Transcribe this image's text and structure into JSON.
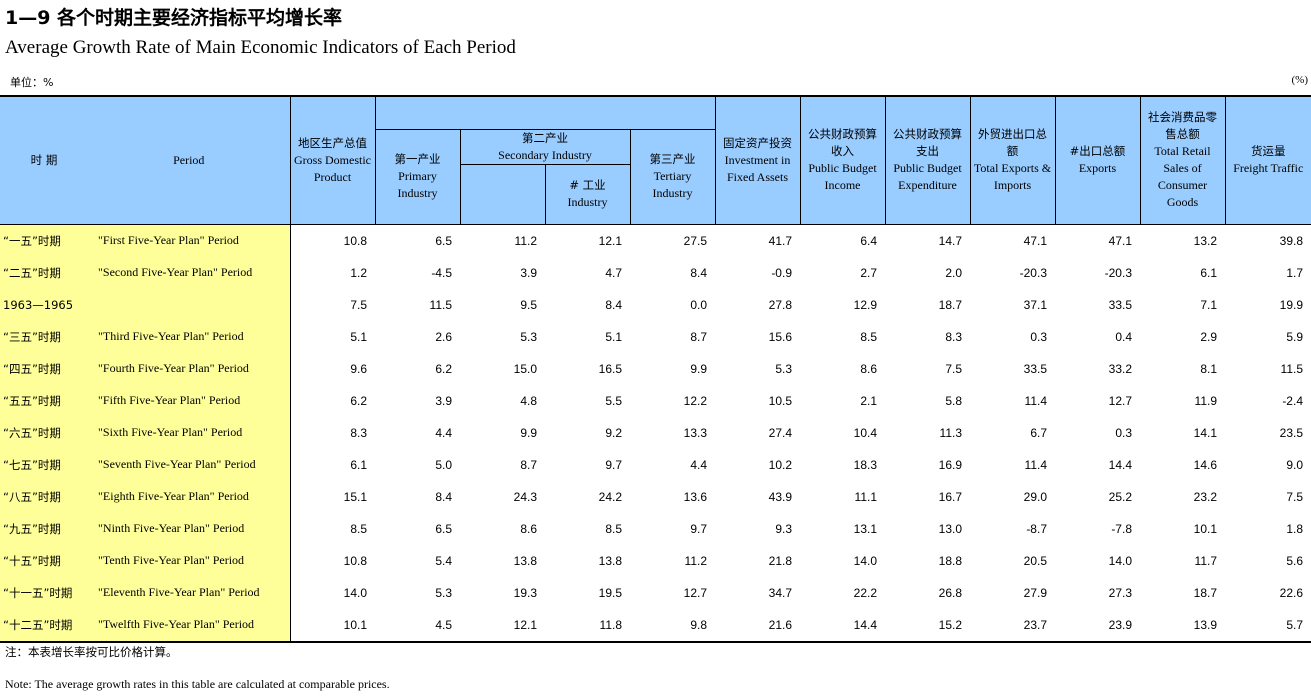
{
  "title_cn": "1—9  各个时期主要经济指标平均增长率",
  "title_en": "Average Growth Rate of Main Economic Indicators of Each Period",
  "unit_left": "单位：%",
  "unit_right": "(%)",
  "headers": {
    "period_cn": "时    期",
    "period_en": "Period",
    "gdp_cn": "地区生产总值",
    "gdp_en": "Gross Domestic Product",
    "primary_cn": "第一产业",
    "primary_en": "Primary Industry",
    "secondary_cn": "第二产业",
    "secondary_en": "Secondary Industry",
    "industry_cn": "# 工业",
    "industry_en": "Industry",
    "tertiary_cn": "第三产业",
    "tertiary_en": "Tertiary Industry",
    "fixed_cn": "固定资产投资",
    "fixed_en": "Investment in Fixed Assets",
    "income_cn": "公共财政预算收入",
    "income_en": "Public Budget Income",
    "expend_cn": "公共财政预算支出",
    "expend_en": "Public Budget Expenditure",
    "trade_cn": "外贸进出口总额",
    "trade_en": "Total Exports & Imports",
    "exports_cn": "#出口总额",
    "exports_en": "Exports",
    "retail_cn": "社会消费品零售总额",
    "retail_en": "Total Retail Sales of Consumer Goods",
    "freight_cn": "货运量",
    "freight_en": "Freight Traffic"
  },
  "rows": [
    {
      "cn": "“一五”时期",
      "en": "\"First Five-Year Plan\" Period",
      "v": [
        "10.8",
        "6.5",
        "11.2",
        "12.1",
        "27.5",
        "41.7",
        "6.4",
        "14.7",
        "47.1",
        "47.1",
        "13.2",
        "39.8"
      ]
    },
    {
      "cn": "“二五”时期",
      "en": "\"Second Five-Year Plan\" Period",
      "v": [
        "1.2",
        "-4.5",
        "3.9",
        "4.7",
        "8.4",
        "-0.9",
        "2.7",
        "2.0",
        "-20.3",
        "-20.3",
        "6.1",
        "1.7"
      ]
    },
    {
      "cn": "1963—1965",
      "en": "",
      "v": [
        "7.5",
        "11.5",
        "9.5",
        "8.4",
        "0.0",
        "27.8",
        "12.9",
        "18.7",
        "37.1",
        "33.5",
        "7.1",
        "19.9"
      ]
    },
    {
      "cn": "“三五”时期",
      "en": "\"Third Five-Year Plan\" Period",
      "v": [
        "5.1",
        "2.6",
        "5.3",
        "5.1",
        "8.7",
        "15.6",
        "8.5",
        "8.3",
        "0.3",
        "0.4",
        "2.9",
        "5.9"
      ]
    },
    {
      "cn": "“四五”时期",
      "en": "\"Fourth Five-Year Plan\" Period",
      "v": [
        "9.6",
        "6.2",
        "15.0",
        "16.5",
        "9.9",
        "5.3",
        "8.6",
        "7.5",
        "33.5",
        "33.2",
        "8.1",
        "11.5"
      ]
    },
    {
      "cn": "“五五”时期",
      "en": "\"Fifth Five-Year Plan\" Period",
      "v": [
        "6.2",
        "3.9",
        "4.8",
        "5.5",
        "12.2",
        "10.5",
        "2.1",
        "5.8",
        "11.4",
        "12.7",
        "11.9",
        "-2.4"
      ]
    },
    {
      "cn": "“六五”时期",
      "en": "\"Sixth Five-Year Plan\" Period",
      "v": [
        "8.3",
        "4.4",
        "9.9",
        "9.2",
        "13.3",
        "27.4",
        "10.4",
        "11.3",
        "6.7",
        "0.3",
        "14.1",
        "23.5"
      ]
    },
    {
      "cn": "“七五”时期",
      "en": "\"Seventh Five-Year Plan\" Period",
      "v": [
        "6.1",
        "5.0",
        "8.7",
        "9.7",
        "4.4",
        "10.2",
        "18.3",
        "16.9",
        "11.4",
        "14.4",
        "14.6",
        "9.0"
      ]
    },
    {
      "cn": "“八五”时期",
      "en": "\"Eighth Five-Year Plan\" Period",
      "v": [
        "15.1",
        "8.4",
        "24.3",
        "24.2",
        "13.6",
        "43.9",
        "11.1",
        "16.7",
        "29.0",
        "25.2",
        "23.2",
        "7.5"
      ]
    },
    {
      "cn": "“九五”时期",
      "en": "\"Ninth Five-Year Plan\" Period",
      "v": [
        "8.5",
        "6.5",
        "8.6",
        "8.5",
        "9.7",
        "9.3",
        "13.1",
        "13.0",
        "-8.7",
        "-7.8",
        "10.1",
        "1.8"
      ]
    },
    {
      "cn": "“十五”时期",
      "en": "\"Tenth Five-Year Plan\" Period",
      "v": [
        "10.8",
        "5.4",
        "13.8",
        "13.8",
        "11.2",
        "21.8",
        "14.0",
        "18.8",
        "20.5",
        "14.0",
        "11.7",
        "5.6"
      ]
    },
    {
      "cn": "“十一五”时期",
      "en": "\"Eleventh Five-Year Plan\" Period",
      "v": [
        "14.0",
        "5.3",
        "19.3",
        "19.5",
        "12.7",
        "34.7",
        "22.2",
        "26.8",
        "27.9",
        "27.3",
        "18.7",
        "22.6"
      ]
    },
    {
      "cn": "“十二五”时期",
      "en": "\"Twelfth Five-Year Plan\" Period",
      "v": [
        "10.1",
        "4.5",
        "12.1",
        "11.8",
        "9.8",
        "21.6",
        "14.4",
        "15.2",
        "23.7",
        "23.9",
        "13.9",
        "5.7"
      ]
    }
  ],
  "note_cn": "注：本表增长率按可比价格计算。",
  "note_en": "Note:  The average growth rates in this table are calculated at comparable prices."
}
